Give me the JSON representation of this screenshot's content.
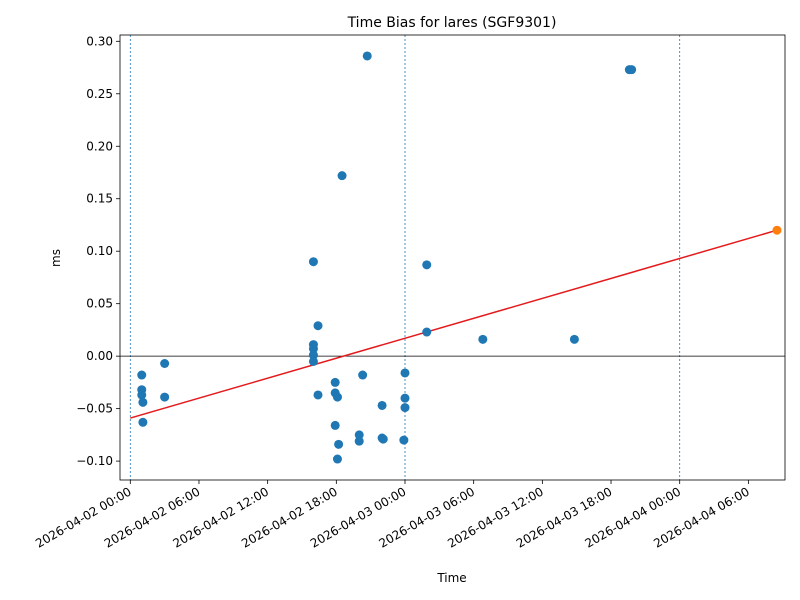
{
  "chart_data": {
    "type": "scatter",
    "title": "Time Bias for lares (SGF9301)",
    "xlabel": "Time",
    "ylabel": "ms",
    "x_start": "2026-04-02 00:00",
    "x_ticks": [
      "2026-04-02 00:00",
      "2026-04-02 06:00",
      "2026-04-02 12:00",
      "2026-04-02 18:00",
      "2026-04-03 00:00",
      "2026-04-03 06:00",
      "2026-04-03 12:00",
      "2026-04-03 18:00",
      "2026-04-04 00:00",
      "2026-04-04 06:00"
    ],
    "xlim_hours": [
      -0.9,
      57.2
    ],
    "ylim": [
      -0.118,
      0.306
    ],
    "y_ticks": [
      "0.30",
      "0.25",
      "0.20",
      "0.15",
      "0.10",
      "0.05",
      "0.00",
      "−0.05",
      "−0.10"
    ],
    "y_tick_values": [
      0.3,
      0.25,
      0.2,
      0.15,
      0.1,
      0.05,
      0.0,
      -0.05,
      -0.1
    ],
    "day_boundaries_hours": [
      0,
      24,
      48
    ],
    "zero_line": 0,
    "series": [
      {
        "color": "#1f77b4",
        "points_hours": [
          [
            1.0,
            -0.018
          ],
          [
            1.0,
            -0.032
          ],
          [
            1.0,
            -0.037
          ],
          [
            1.1,
            -0.044
          ],
          [
            1.1,
            -0.063
          ],
          [
            3.0,
            -0.007
          ],
          [
            3.0,
            -0.039
          ],
          [
            16.0,
            0.09
          ],
          [
            16.0,
            0.011
          ],
          [
            16.0,
            0.007
          ],
          [
            16.0,
            0.001
          ],
          [
            16.0,
            -0.005
          ],
          [
            16.4,
            0.029
          ],
          [
            16.4,
            -0.037
          ],
          [
            17.9,
            -0.025
          ],
          [
            17.9,
            -0.035
          ],
          [
            17.9,
            -0.066
          ],
          [
            18.1,
            -0.039
          ],
          [
            18.1,
            -0.098
          ],
          [
            18.2,
            -0.084
          ],
          [
            18.5,
            0.172
          ],
          [
            20.0,
            -0.075
          ],
          [
            20.0,
            -0.081
          ],
          [
            20.3,
            -0.018
          ],
          [
            20.7,
            0.286
          ],
          [
            22.0,
            -0.047
          ],
          [
            22.0,
            -0.078
          ],
          [
            22.1,
            -0.079
          ],
          [
            24.0,
            -0.016
          ],
          [
            24.0,
            -0.04
          ],
          [
            24.0,
            -0.049
          ],
          [
            23.9,
            -0.08
          ],
          [
            25.9,
            0.087
          ],
          [
            25.9,
            0.023
          ],
          [
            30.8,
            0.016
          ],
          [
            38.8,
            0.016
          ],
          [
            43.6,
            0.273
          ],
          [
            43.8,
            0.273
          ]
        ]
      },
      {
        "color": "#ff7f0e",
        "points_hours": [
          [
            56.5,
            0.12
          ]
        ]
      }
    ],
    "trend_line": {
      "color": "#e41a1c",
      "from_hours": [
        0,
        -0.059
      ],
      "to_hours": [
        56.5,
        0.12
      ]
    }
  }
}
